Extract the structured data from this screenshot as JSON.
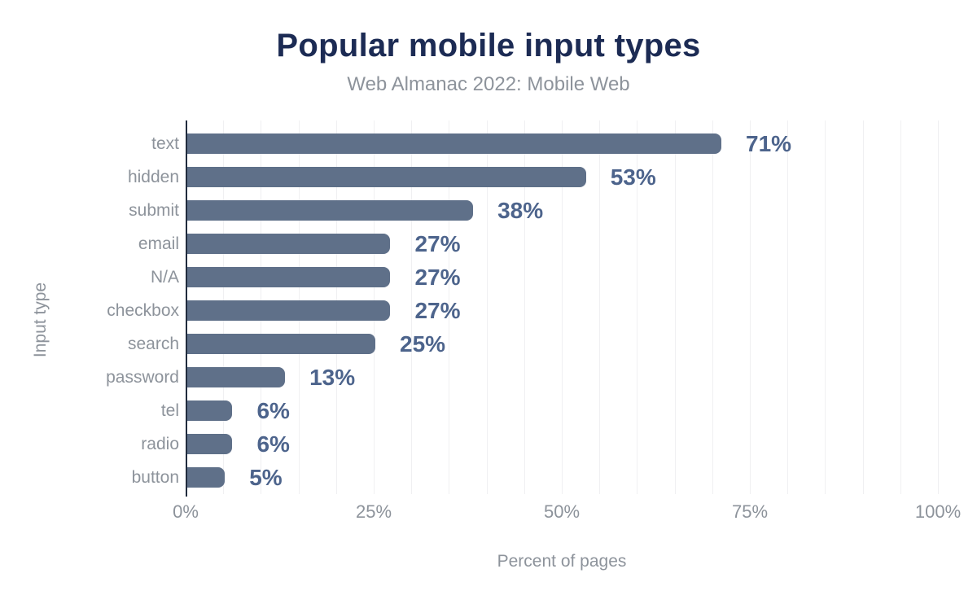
{
  "chart_data": {
    "type": "bar",
    "orientation": "horizontal",
    "title": "Popular mobile input types",
    "subtitle": "Web Almanac 2022: Mobile Web",
    "xlabel": "Percent of pages",
    "ylabel": "Input type",
    "categories": [
      "text",
      "hidden",
      "submit",
      "email",
      "N/A",
      "checkbox",
      "search",
      "password",
      "tel",
      "radio",
      "button"
    ],
    "values": [
      71,
      53,
      38,
      27,
      27,
      27,
      25,
      13,
      6,
      6,
      5
    ],
    "value_labels": [
      "71%",
      "53%",
      "38%",
      "27%",
      "27%",
      "27%",
      "25%",
      "13%",
      "6%",
      "6%",
      "5%"
    ],
    "xlim": [
      0,
      100
    ],
    "x_ticks": [
      {
        "value": 0,
        "label": "0%"
      },
      {
        "value": 25,
        "label": "25%"
      },
      {
        "value": 50,
        "label": "50%"
      },
      {
        "value": 75,
        "label": "75%"
      },
      {
        "value": 100,
        "label": "100%"
      }
    ],
    "grid": {
      "axis": "x",
      "minor_step_percent": 5,
      "visible": true
    },
    "legend": "none",
    "colors": {
      "bar": "#5f7089",
      "value_label": "#4d648c",
      "title": "#1c2b54",
      "muted_text": "#8d939b",
      "axis_line": "#202b3d",
      "gridline": "#f0f0f2",
      "background": "#ffffff"
    }
  }
}
